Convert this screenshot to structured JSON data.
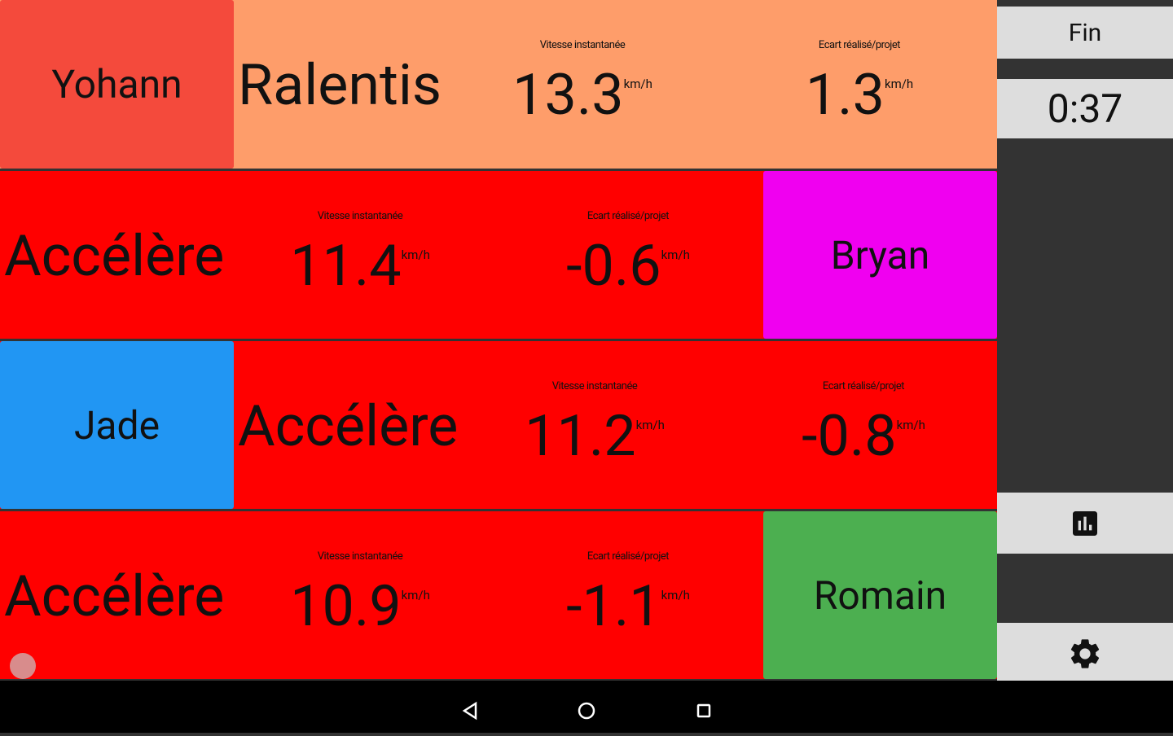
{
  "rows": [
    {
      "name": "Yohann",
      "status": "Ralentis",
      "speed_label": "Vitesse instantanée",
      "speed": "13.3",
      "speed_unit": "km/h",
      "gap_label": "Ecart réalisé/projet",
      "gap": "1.3",
      "gap_unit": "km/h"
    },
    {
      "name": "Bryan",
      "status": "Accélère",
      "speed_label": "Vitesse instantanée",
      "speed": "11.4",
      "speed_unit": "km/h",
      "gap_label": "Ecart réalisé/projet",
      "gap": "-0.6",
      "gap_unit": "km/h"
    },
    {
      "name": "Jade",
      "status": "Accélère",
      "speed_label": "Vitesse instantanée",
      "speed": "11.2",
      "speed_unit": "km/h",
      "gap_label": "Ecart réalisé/projet",
      "gap": "-0.8",
      "gap_unit": "km/h"
    },
    {
      "name": "Romain",
      "status": "Accélère",
      "speed_label": "Vitesse instantanée",
      "speed": "10.9",
      "speed_unit": "km/h",
      "gap_label": "Ecart réalisé/projet",
      "gap": "-1.1",
      "gap_unit": "km/h"
    }
  ],
  "sidebar": {
    "end_button": "Fin",
    "timer": "0:37"
  }
}
